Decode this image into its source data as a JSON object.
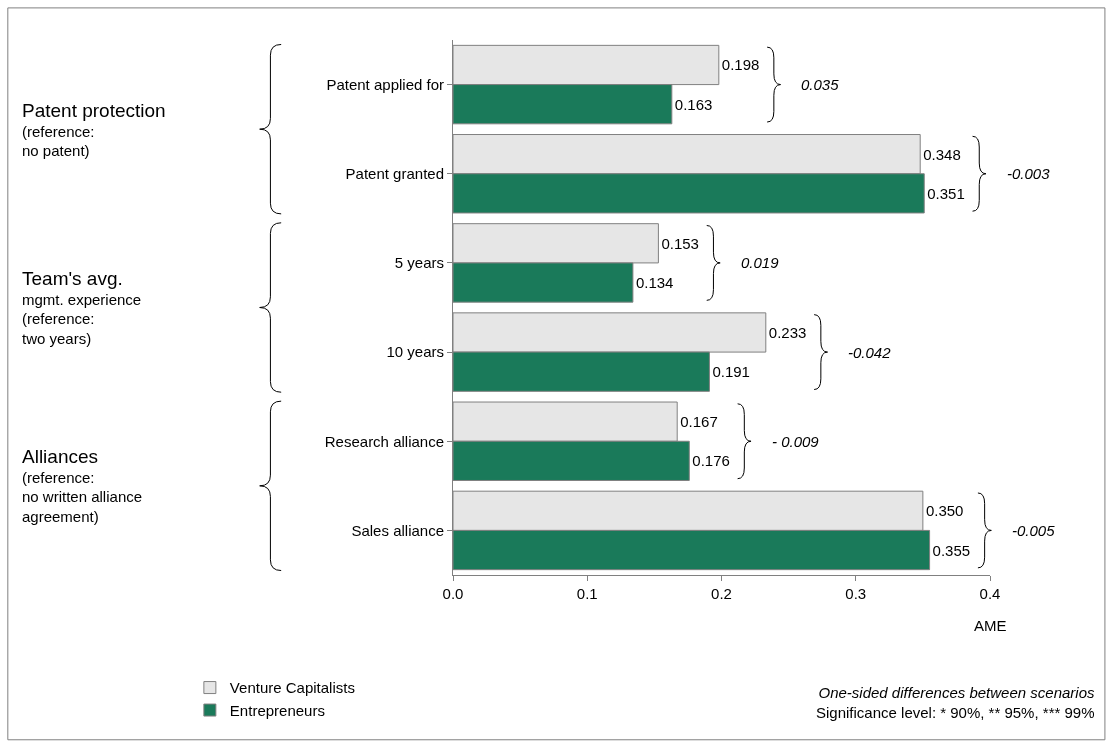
{
  "chart_data": {
    "type": "bar",
    "orientation": "horizontal",
    "xlabel": "AME",
    "categories": [
      "Patent applied for",
      "Patent granted",
      "5 years",
      "10 years",
      "Research alliance",
      "Sales alliance"
    ],
    "series": [
      {
        "name": "Venture Capitalists",
        "color": "#e6e6e6",
        "values": [
          0.198,
          0.348,
          0.153,
          0.233,
          0.167,
          0.35
        ],
        "value_labels": [
          "0.198",
          "0.348",
          "0.153",
          "0.233",
          "0.167",
          "0.350"
        ]
      },
      {
        "name": "Entrepreneurs",
        "color": "#1a7a5a",
        "values": [
          0.163,
          0.351,
          0.134,
          0.191,
          0.176,
          0.355
        ]
      }
    ],
    "data_labels": true,
    "xlim": [
      0,
      0.4
    ],
    "xticks": [
      {
        "value": 0,
        "label": "0.0"
      },
      {
        "value": 0.1,
        "label": "0.1"
      },
      {
        "value": 0.2,
        "label": "0.2"
      },
      {
        "value": 0.3,
        "label": "0.3"
      },
      {
        "value": 0.4,
        "label": "0.4"
      }
    ],
    "legend": "bottom left",
    "annotations": [
      "Patent protection\n(reference:\nno patent)",
      "Team's avg.\nmgmt. experience\n(reference:\ntwo years)",
      "Alliances\n(reference:\nno written alliance\nagreement)",
      "One-sided differences between scenarios\nSignificance level: * 90%, ** 95%, *** 99%",
      "0.035",
      "-0.003",
      "0.019",
      "-0.042",
      "- 0.009",
      "-0.005"
    ]
  }
}
